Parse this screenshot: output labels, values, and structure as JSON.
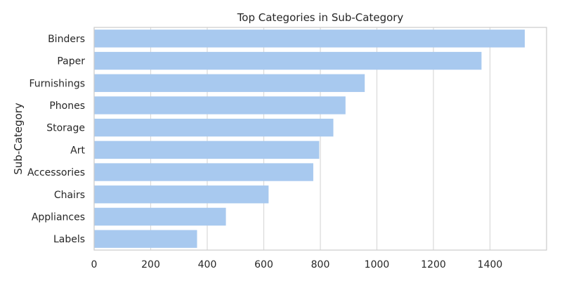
{
  "chart_data": {
    "type": "bar",
    "orientation": "horizontal",
    "title": "Top Categories in Sub-Category",
    "xlabel": "",
    "ylabel": "Sub-Category",
    "categories": [
      "Binders",
      "Paper",
      "Furnishings",
      "Phones",
      "Storage",
      "Art",
      "Accessories",
      "Chairs",
      "Appliances",
      "Labels"
    ],
    "values": [
      1523,
      1370,
      957,
      889,
      846,
      796,
      775,
      617,
      466,
      364
    ],
    "xlim": [
      0,
      1600
    ],
    "xticks": [
      0,
      200,
      400,
      600,
      800,
      1000,
      1200,
      1400
    ],
    "grid": true,
    "bar_color": "#a8c9ef",
    "grid_color": "#d9d9d9",
    "frame_color": "#cccccc"
  }
}
